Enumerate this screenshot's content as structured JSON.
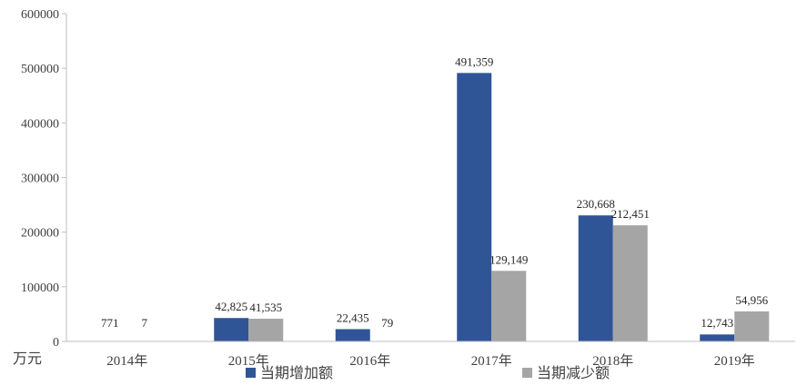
{
  "chart_data": {
    "type": "bar",
    "unit_label": "万元",
    "categories": [
      "2014年",
      "2015年",
      "2016年",
      "2017年",
      "2018年",
      "2019年"
    ],
    "series": [
      {
        "name": "当期增加额",
        "color": "#2F5597",
        "values": [
          771,
          42825,
          22435,
          491359,
          230668,
          12743
        ],
        "labels": [
          "771",
          "42,825",
          "22,435",
          "491,359",
          "230,668",
          "12,743"
        ]
      },
      {
        "name": "当期减少额",
        "color": "#A5A5A5",
        "values": [
          7,
          41535,
          79,
          129149,
          212451,
          54956
        ],
        "labels": [
          "7",
          "41,535",
          "79",
          "129,149",
          "212,451",
          "54,956"
        ]
      }
    ],
    "ylim": [
      0,
      600000
    ],
    "yticks": [
      "0",
      "100000",
      "200000",
      "300000",
      "400000",
      "500000",
      "600000"
    ],
    "grid": false,
    "legend_position": "bottom"
  }
}
